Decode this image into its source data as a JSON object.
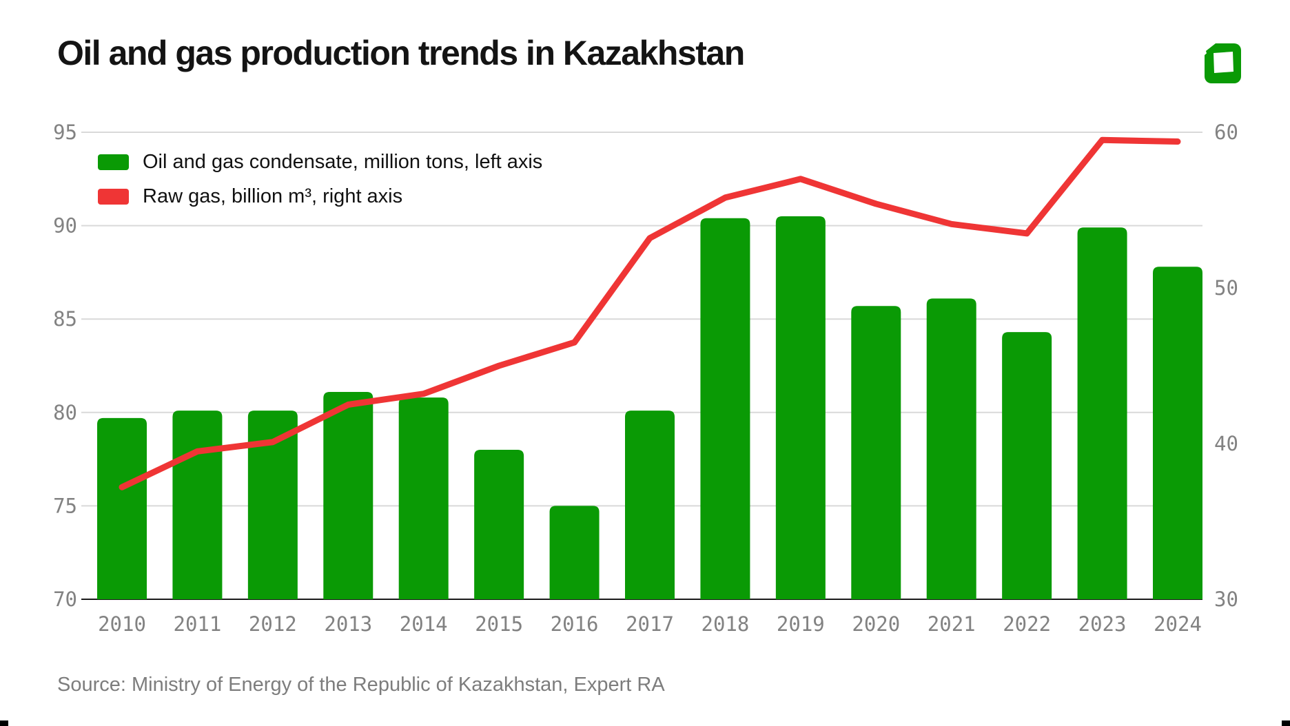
{
  "header": {
    "title": "Oil and gas production trends in Kazakhstan"
  },
  "legend": {
    "items": [
      {
        "label": "Oil and gas condensate, million tons, left axis",
        "color": "#0a9a05"
      },
      {
        "label": "Raw gas, billion m³, right axis",
        "color": "#ef3535"
      }
    ]
  },
  "source": {
    "text": "Source: Ministry of Energy of the Republic of Kazakhstan, Expert RA"
  },
  "logo": {
    "name": "green-square-logo",
    "color": "#0a9a05"
  },
  "colors": {
    "bar_green": "#0a9a05",
    "line_red": "#ef3535",
    "gridline": "#d9d9d9",
    "baseline_axis": "#1a1a1a",
    "axis_text": "#828282",
    "title_text": "#141414",
    "source_text": "#7d7d7d"
  },
  "chart_data": {
    "type": "bar",
    "subtype": "bar+line dual axis",
    "categories": [
      "2010",
      "2011",
      "2012",
      "2013",
      "2014",
      "2015",
      "2016",
      "2017",
      "2018",
      "2019",
      "2020",
      "2021",
      "2022",
      "2023",
      "2024"
    ],
    "series": [
      {
        "name": "Oil and gas condensate, million tons, left axis",
        "type": "bar",
        "axis": "left",
        "color": "#0a9a05",
        "values": [
          79.7,
          80.1,
          80.1,
          81.1,
          80.8,
          78.0,
          75.0,
          80.1,
          90.4,
          90.5,
          85.7,
          86.1,
          84.3,
          89.9,
          87.8
        ]
      },
      {
        "name": "Raw gas, billion m³, right axis",
        "type": "line",
        "axis": "right",
        "color": "#ef3535",
        "values": [
          37.2,
          39.5,
          40.1,
          42.5,
          43.2,
          45.0,
          46.5,
          53.2,
          55.8,
          57.0,
          55.4,
          54.1,
          53.5,
          59.5,
          59.4
        ]
      }
    ],
    "left_axis": {
      "ticks": [
        70,
        75,
        80,
        85,
        90,
        95
      ],
      "range": [
        70,
        95
      ]
    },
    "right_axis": {
      "ticks": [
        30,
        40,
        50,
        60
      ],
      "range": [
        30,
        60
      ]
    },
    "grid": "horizontal gridlines at left-axis ticks; bottom (70/30) line dark",
    "legend_position": "top-left inside plot",
    "title": "Oil and gas production trends in Kazakhstan"
  }
}
